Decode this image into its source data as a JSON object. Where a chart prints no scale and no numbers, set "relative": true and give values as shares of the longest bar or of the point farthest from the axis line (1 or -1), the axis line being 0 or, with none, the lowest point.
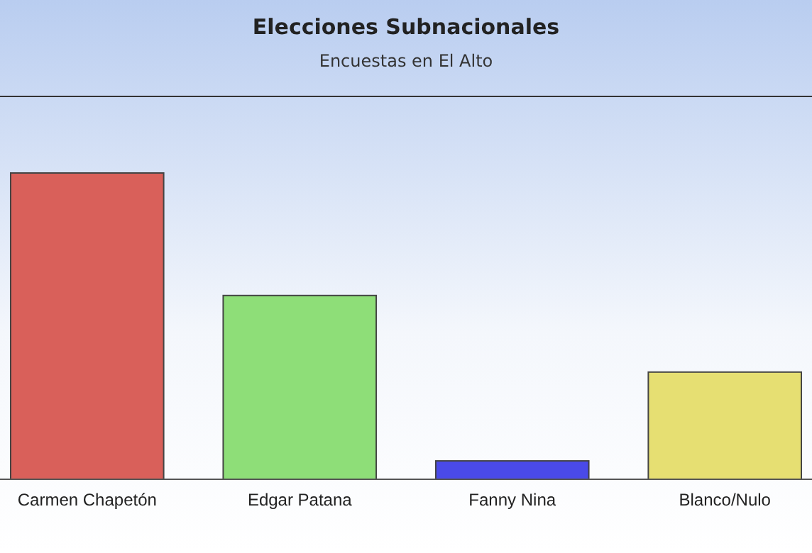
{
  "chart_data": {
    "type": "bar",
    "title": "Elecciones Subnacionales",
    "subtitle": "Encuestas en El Alto",
    "categories": [
      "Carmen Chapetón",
      "Edgar Patana",
      "Fanny Nina",
      "Blanco/Nulo"
    ],
    "relative": true,
    "colors": [
      "#d9605a",
      "#8ede78",
      "#4a4ae8",
      "#e6df72"
    ],
    "values": [
      1,
      0.6,
      0.06,
      0.35
    ]
  }
}
